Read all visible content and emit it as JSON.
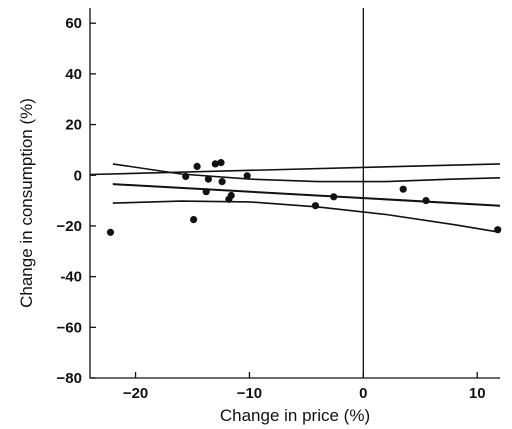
{
  "chart_data": {
    "type": "scatter",
    "title": "",
    "xlabel": "Change in price (%)",
    "ylabel": "Change in consumption (%)",
    "xlim": [
      -24,
      12
    ],
    "ylim": [
      -80,
      66
    ],
    "x_ticks": [
      -20,
      -10,
      0,
      10
    ],
    "x_tick_labels": [
      "−20",
      "−10",
      "0",
      "10"
    ],
    "y_ticks": [
      60,
      40,
      20,
      0,
      -20,
      -40,
      -60,
      -80
    ],
    "y_tick_labels": [
      "60",
      "40",
      "20",
      "0",
      "−20",
      "-40",
      "−60",
      "−80"
    ],
    "reference_lines": {
      "x": 0
    },
    "points": [
      {
        "x": -22.2,
        "y": -22.5
      },
      {
        "x": -15.6,
        "y": -0.5
      },
      {
        "x": -14.9,
        "y": -17.5
      },
      {
        "x": -14.6,
        "y": 3.5
      },
      {
        "x": -13.8,
        "y": -6.5
      },
      {
        "x": -13.6,
        "y": -1.5
      },
      {
        "x": -13.0,
        "y": 4.5
      },
      {
        "x": -12.5,
        "y": 5.0
      },
      {
        "x": -12.4,
        "y": -2.5
      },
      {
        "x": -11.8,
        "y": -9.5
      },
      {
        "x": -11.6,
        "y": -8.0
      },
      {
        "x": -10.2,
        "y": -0.2
      },
      {
        "x": -4.2,
        "y": -12.0
      },
      {
        "x": -2.6,
        "y": -8.5
      },
      {
        "x": 3.5,
        "y": -5.5
      },
      {
        "x": 5.5,
        "y": -10.0
      },
      {
        "x": 11.8,
        "y": -21.5
      }
    ],
    "regression_line": [
      [
        -22.0,
        -3.5
      ],
      [
        12.0,
        -12.0
      ]
    ],
    "confidence_band_upper": [
      [
        -22.0,
        4.5
      ],
      [
        -16.0,
        0.5
      ],
      [
        -10.0,
        -1.5
      ],
      [
        -4.0,
        -2.5
      ],
      [
        2.0,
        -2.5
      ],
      [
        8.0,
        -1.5
      ],
      [
        12.0,
        -1.0
      ]
    ],
    "confidence_band_lower": [
      [
        -22.0,
        -11.0
      ],
      [
        -16.0,
        -10.2
      ],
      [
        -10.0,
        -10.5
      ],
      [
        -4.0,
        -12.5
      ],
      [
        2.0,
        -15.5
      ],
      [
        8.0,
        -19.5
      ],
      [
        12.0,
        -22.5
      ]
    ],
    "reference_curve": [
      [
        -24.0,
        0.3
      ],
      [
        12.0,
        4.5
      ]
    ]
  }
}
